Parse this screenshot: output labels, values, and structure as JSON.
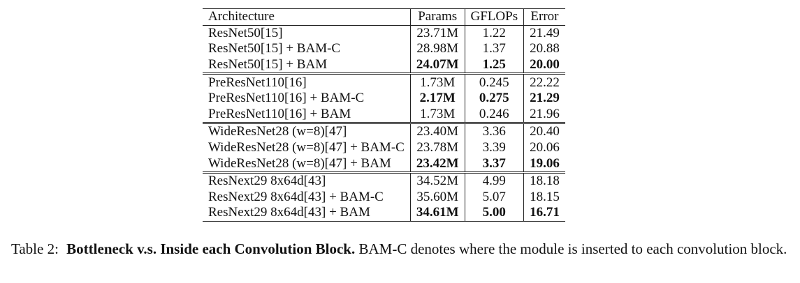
{
  "table": {
    "headers": [
      "Architecture",
      "Params",
      "GFLOPs",
      "Error"
    ],
    "groups": [
      {
        "rows": [
          {
            "arch": "ResNet50[15]",
            "params": "23.71M",
            "gflops": "1.22",
            "error": "21.49",
            "bold": false
          },
          {
            "arch": "ResNet50[15] + BAM-C",
            "params": "28.98M",
            "gflops": "1.37",
            "error": "20.88",
            "bold": false
          },
          {
            "arch": "ResNet50[15] + BAM",
            "params": "24.07M",
            "gflops": "1.25",
            "error": "20.00",
            "bold": true
          }
        ]
      },
      {
        "rows": [
          {
            "arch": "PreResNet110[16]",
            "params": "1.73M",
            "gflops": "0.245",
            "error": "22.22",
            "bold": false
          },
          {
            "arch": "PreResNet110[16] + BAM-C",
            "params": "2.17M",
            "gflops": "0.275",
            "error": "21.29",
            "bold": true
          },
          {
            "arch": "PreResNet110[16] + BAM",
            "params": "1.73M",
            "gflops": "0.246",
            "error": "21.96",
            "bold": false
          }
        ]
      },
      {
        "rows": [
          {
            "arch": "WideResNet28 (w=8)[47]",
            "params": "23.40M",
            "gflops": "3.36",
            "error": "20.40",
            "bold": false
          },
          {
            "arch": "WideResNet28 (w=8)[47] + BAM-C",
            "params": "23.78M",
            "gflops": "3.39",
            "error": "20.06",
            "bold": false
          },
          {
            "arch": "WideResNet28 (w=8)[47] + BAM",
            "params": "23.42M",
            "gflops": "3.37",
            "error": "19.06",
            "bold": true
          }
        ]
      },
      {
        "rows": [
          {
            "arch": "ResNext29 8x64d[43]",
            "params": "34.52M",
            "gflops": "4.99",
            "error": "18.18",
            "bold": false
          },
          {
            "arch": "ResNext29 8x64d[43] + BAM-C",
            "params": "35.60M",
            "gflops": "5.07",
            "error": "18.15",
            "bold": false
          },
          {
            "arch": "ResNext29 8x64d[43] + BAM",
            "params": "34.61M",
            "gflops": "5.00",
            "error": "16.71",
            "bold": true
          }
        ]
      }
    ]
  },
  "caption": {
    "label": "Table 2:",
    "title": "Bottleneck v.s. Inside each Convolution Block.",
    "text": "BAM-C denotes where the module is inserted to each convolution block."
  }
}
